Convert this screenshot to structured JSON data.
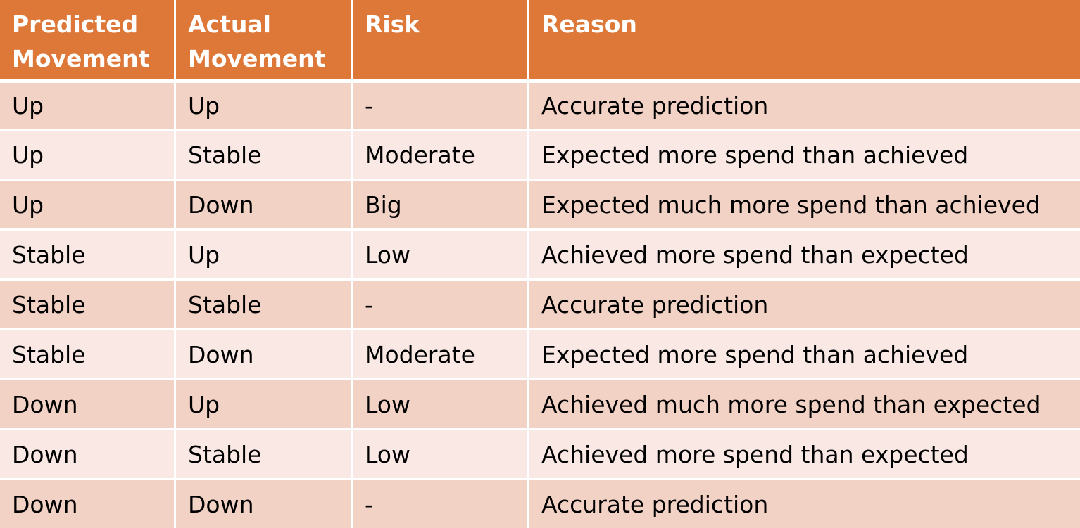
{
  "headers": [
    "Predicted Movement",
    "Actual Movement",
    "Risk",
    "Reason"
  ],
  "rows": [
    [
      "Up",
      "Up",
      "-",
      "Accurate prediction"
    ],
    [
      "Up",
      "Stable",
      "Moderate",
      "Expected more spend than achieved"
    ],
    [
      "Up",
      "Down",
      "Big",
      "Expected much more spend than achieved"
    ],
    [
      "Stable",
      "Up",
      "Low",
      "Achieved more spend than expected"
    ],
    [
      "Stable",
      "Stable",
      "-",
      "Accurate prediction"
    ],
    [
      "Stable",
      "Down",
      "Moderate",
      "Expected more spend than achieved"
    ],
    [
      "Down",
      "Up",
      "Low",
      "Achieved much more spend than expected"
    ],
    [
      "Down",
      "Stable",
      "Low",
      "Achieved more spend than expected"
    ],
    [
      "Down",
      "Down",
      "-",
      "Accurate prediction"
    ]
  ],
  "colors": {
    "header_bg": "#de7839",
    "header_text": "#ffffff",
    "row_odd_bg": "#f3d2c6",
    "row_even_bg": "#f9e8e3"
  }
}
